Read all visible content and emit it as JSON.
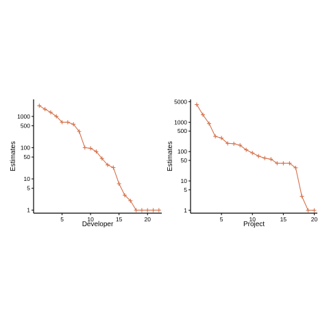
{
  "chart_data": [
    {
      "type": "line",
      "scale_y": "log",
      "grid": false,
      "xlabel": "Developer",
      "ylabel": "Estimates",
      "x_ticks": [
        5,
        10,
        15,
        20
      ],
      "y_ticks": [
        1,
        5,
        10,
        50,
        100,
        500,
        1000
      ],
      "y_tick_labels": [
        "1",
        "5",
        "10",
        "50",
        "100",
        "500",
        "1000"
      ],
      "xlim": [
        0,
        22.5
      ],
      "ylim": [
        0.8,
        3500
      ],
      "color": "#d4704a",
      "marker": "plus",
      "x": [
        1,
        2,
        3,
        4,
        5,
        6,
        7,
        8,
        9,
        10,
        11,
        12,
        13,
        14,
        15,
        16,
        17,
        18,
        19,
        20,
        21,
        22
      ],
      "values": [
        2200,
        1700,
        1350,
        1000,
        650,
        650,
        560,
        330,
        100,
        95,
        75,
        45,
        28,
        23,
        7,
        3,
        2,
        1,
        1,
        1,
        1,
        1
      ]
    },
    {
      "type": "line",
      "scale_y": "log",
      "grid": false,
      "xlabel": "Project",
      "ylabel": "Estimates",
      "x_ticks": [
        5,
        10,
        15,
        20
      ],
      "y_ticks": [
        1,
        5,
        10,
        50,
        100,
        500,
        1000,
        5000
      ],
      "y_tick_labels": [
        "1",
        "5",
        "10",
        "50",
        "100",
        "500",
        "1000",
        "5000"
      ],
      "xlim": [
        0,
        20.5
      ],
      "ylim": [
        0.8,
        6000
      ],
      "color": "#d4704a",
      "marker": "plus",
      "x": [
        1,
        2,
        3,
        4,
        5,
        6,
        7,
        8,
        9,
        10,
        11,
        12,
        13,
        14,
        15,
        16,
        17,
        18,
        19,
        20
      ],
      "values": [
        4000,
        1800,
        900,
        330,
        290,
        190,
        185,
        165,
        115,
        90,
        70,
        60,
        55,
        40,
        40,
        40,
        28,
        3,
        1,
        1
      ]
    }
  ]
}
